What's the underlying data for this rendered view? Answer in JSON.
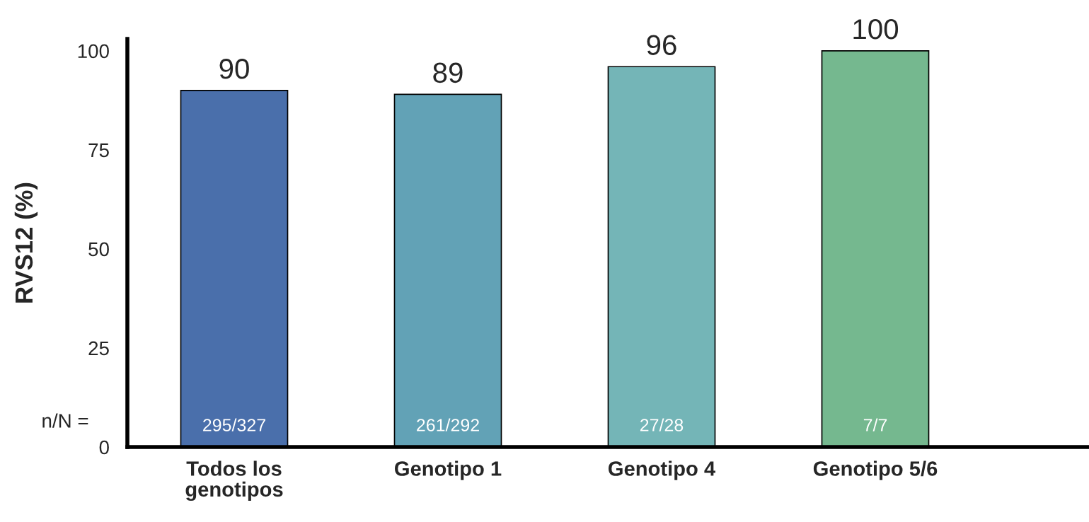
{
  "chart_data": {
    "type": "bar",
    "ylabel": "RVS12 (%)",
    "categories": [
      "Todos los\ngenotipos",
      "Genotipo 1",
      "Genotipo 4",
      "Genotipo 5/6"
    ],
    "values": [
      90,
      89,
      96,
      100
    ],
    "colors": [
      "#4a6fab",
      "#62a2b6",
      "#74b5b7",
      "#75b88f"
    ],
    "data_labels": true,
    "ylim": [
      0,
      103
    ],
    "yticks": [
      0,
      25,
      50,
      75,
      100
    ],
    "grid": false,
    "annotations": [
      "n/N =",
      "295/327",
      "261/292",
      "27/28",
      "7/7"
    ]
  }
}
